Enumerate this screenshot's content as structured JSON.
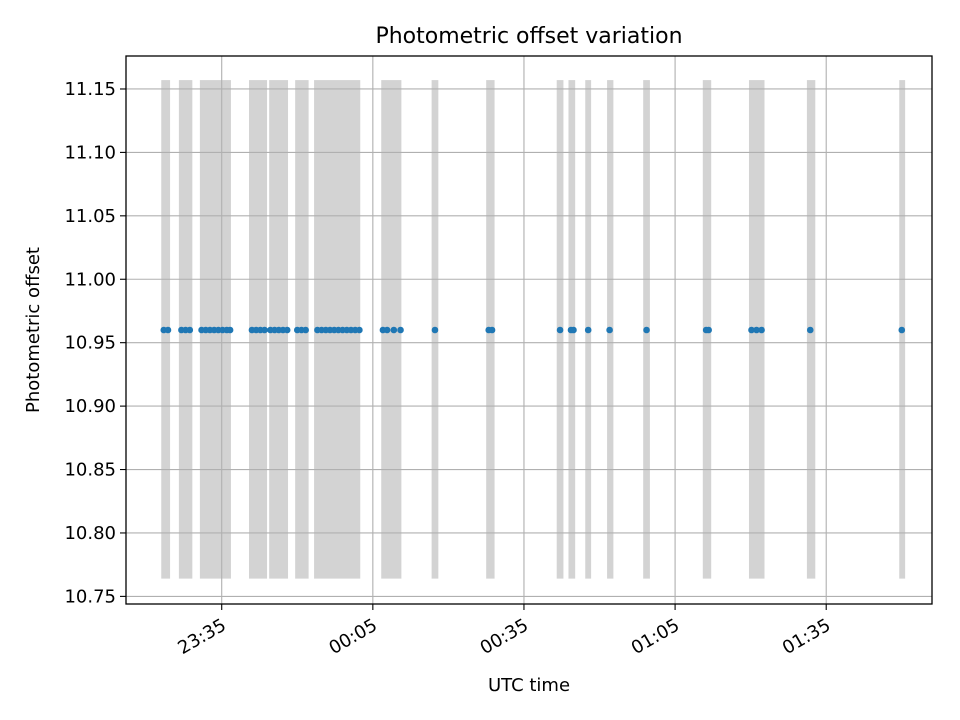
{
  "chart_data": {
    "type": "scatter",
    "title": "Photometric offset variation",
    "xlabel": "UTC time",
    "ylabel": "Photometric offset",
    "xlim": [
      "23:16",
      "01:56"
    ],
    "ylim": [
      10.744,
      11.176
    ],
    "grid": true,
    "x_ticks": [
      "23:35",
      "00:05",
      "00:35",
      "01:05",
      "01:35"
    ],
    "y_ticks": [
      "10.75",
      "10.80",
      "10.85",
      "10.90",
      "10.95",
      "11.00",
      "11.05",
      "11.10",
      "11.15"
    ],
    "span_range": [
      10.764,
      11.157
    ],
    "exposure_spans": [
      [
        "23:23:00",
        "23:24:45"
      ],
      [
        "23:26:30",
        "23:29:10"
      ],
      [
        "23:30:40",
        "23:36:50"
      ],
      [
        "23:40:25",
        "23:44:00"
      ],
      [
        "23:44:25",
        "23:48:10"
      ],
      [
        "23:49:35",
        "23:52:15"
      ],
      [
        "23:53:20",
        "00:02:30"
      ],
      [
        "00:06:40",
        "00:10:40"
      ],
      [
        "00:16:40",
        "00:18:00"
      ],
      [
        "00:27:30",
        "00:29:10"
      ],
      [
        "00:41:30",
        "00:42:50"
      ],
      [
        "00:43:50",
        "00:45:10"
      ],
      [
        "00:47:10",
        "00:48:20"
      ],
      [
        "00:51:30",
        "00:52:45"
      ],
      [
        "00:58:40",
        "01:00:00"
      ],
      [
        "01:10:30",
        "01:12:10"
      ],
      [
        "01:19:40",
        "01:22:45"
      ],
      [
        "01:31:10",
        "01:32:50"
      ],
      [
        "01:49:30",
        "01:50:40"
      ]
    ],
    "series": [
      {
        "color": "#1f77b4",
        "x": [
          "23:23:30",
          "23:24:20",
          "23:27:00",
          "23:27:50",
          "23:28:40",
          "23:31:00",
          "23:31:50",
          "23:32:40",
          "23:33:30",
          "23:34:20",
          "23:35:10",
          "23:36:00",
          "23:36:40",
          "23:41:00",
          "23:41:50",
          "23:42:40",
          "23:43:30",
          "23:44:40",
          "23:45:30",
          "23:46:20",
          "23:47:10",
          "23:48:00",
          "23:50:00",
          "23:50:50",
          "23:51:40",
          "23:54:00",
          "23:54:50",
          "23:55:40",
          "23:56:30",
          "23:57:20",
          "23:58:10",
          "23:59:00",
          "23:59:50",
          "00:00:40",
          "00:01:30",
          "00:02:20",
          "00:07:00",
          "00:07:50",
          "00:09:10",
          "00:10:30",
          "00:17:20",
          "00:28:00",
          "00:28:40",
          "00:42:10",
          "00:44:20",
          "00:44:50",
          "00:47:45",
          "00:52:00",
          "00:59:20",
          "01:11:10",
          "01:11:40",
          "01:20:10",
          "01:21:10",
          "01:22:10",
          "01:31:50",
          "01:50:00"
        ],
        "y": [
          10.96,
          10.96,
          10.96,
          10.96,
          10.96,
          10.96,
          10.96,
          10.96,
          10.96,
          10.96,
          10.96,
          10.96,
          10.96,
          10.96,
          10.96,
          10.96,
          10.96,
          10.96,
          10.96,
          10.96,
          10.96,
          10.96,
          10.96,
          10.96,
          10.96,
          10.96,
          10.96,
          10.96,
          10.96,
          10.96,
          10.96,
          10.96,
          10.96,
          10.96,
          10.96,
          10.96,
          10.96,
          10.96,
          10.96,
          10.96,
          10.96,
          10.96,
          10.96,
          10.96,
          10.96,
          10.96,
          10.96,
          10.96,
          10.96,
          10.96,
          10.96,
          10.96,
          10.96,
          10.96,
          10.96,
          10.96
        ]
      }
    ],
    "colors": {
      "points": "#1f77b4",
      "spans": "#d3d3d3",
      "grid": "#b0b0b0",
      "axes": "#000000"
    }
  }
}
